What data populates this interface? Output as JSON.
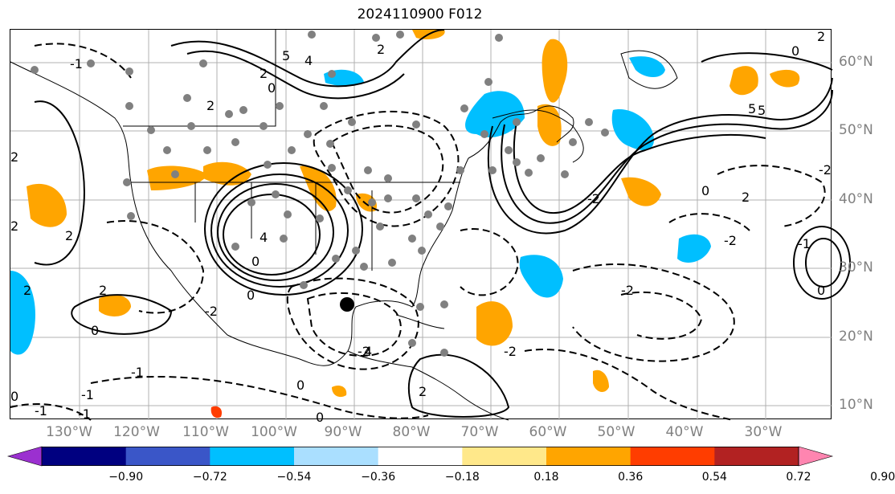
{
  "title": "2024110900 F012",
  "longitude_labels": [
    "130°W",
    "120°W",
    "110°W",
    "100°W",
    "90°W",
    "80°W",
    "70°W",
    "60°W",
    "50°W",
    "40°W",
    "30°W"
  ],
  "latitude_labels": [
    "60°N",
    "50°N",
    "40°N",
    "30°N",
    "20°N",
    "10°N"
  ],
  "colorbar": {
    "ticks": [
      "−0.90",
      "−0.72",
      "−0.54",
      "−0.36",
      "−0.18",
      "0.18",
      "0.36",
      "0.54",
      "0.72",
      "0.90"
    ],
    "colors": [
      "#9b30d0",
      "#000080",
      "#3a56c8",
      "#00bfff",
      "#aadfff",
      "#ffffff",
      "#ffe88a",
      "#ffa500",
      "#ff3d00",
      "#b22222",
      "#ff85b0"
    ]
  },
  "contour_labels": [
    "5",
    "4",
    "2",
    "-1",
    "2",
    "0",
    "2",
    "4",
    "0",
    "-2",
    "0",
    "2",
    "0",
    "-1",
    "0",
    "2",
    "-1",
    "-2",
    "5",
    "0",
    "-1",
    "0",
    "-2",
    "2",
    "-2",
    "0",
    "2",
    "-2",
    "-2",
    "2",
    "2",
    "0",
    "-1",
    "2",
    "0",
    "-2",
    "-1",
    "5",
    "2",
    "4"
  ],
  "fill_colors": {
    "positive": "#ffa500",
    "positive_strong": "#ff3d00",
    "negative": "#00bfff"
  },
  "marker_colors": {
    "station": "#808080",
    "center": "#000000"
  }
}
